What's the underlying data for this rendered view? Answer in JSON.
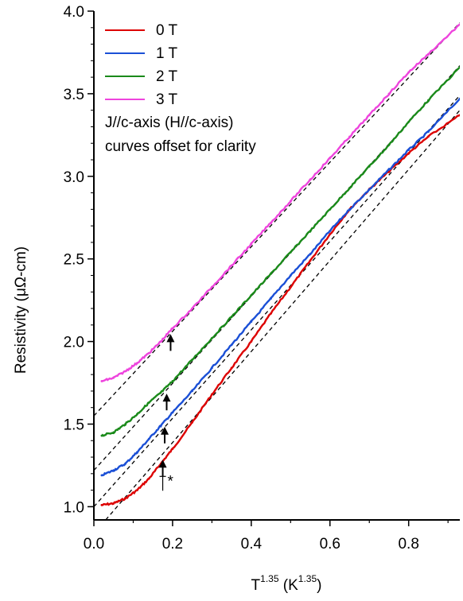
{
  "chart_data": {
    "type": "line",
    "xlabel": {
      "base": "T",
      "exp": "1.35",
      "unit_open": " (K",
      "unit_exp": "1.35",
      "unit_close": ")"
    },
    "ylabel": "Resistivity (μΩ-cm)",
    "xlim": [
      0.0,
      0.93
    ],
    "ylim": [
      0.92,
      4.0
    ],
    "x_ticks": [
      {
        "value": 0.0,
        "label": "0.0"
      },
      {
        "value": 0.2,
        "label": "0.2"
      },
      {
        "value": 0.4,
        "label": "0.4"
      },
      {
        "value": 0.6,
        "label": "0.6"
      },
      {
        "value": 0.8,
        "label": "0.8"
      }
    ],
    "y_ticks": [
      {
        "value": 1.0,
        "label": "1.0"
      },
      {
        "value": 1.5,
        "label": "1.5"
      },
      {
        "value": 2.0,
        "label": "2.0"
      },
      {
        "value": 2.5,
        "label": "2.5"
      },
      {
        "value": 3.0,
        "label": "3.0"
      },
      {
        "value": 3.5,
        "label": "3.5"
      },
      {
        "value": 4.0,
        "label": "4.0"
      }
    ],
    "grid": false,
    "legend_position": "top-left",
    "series": [
      {
        "name": "0 T",
        "color": "#dd0000",
        "x": [
          0.02,
          0.05,
          0.08,
          0.11,
          0.14,
          0.17,
          0.2,
          0.25,
          0.3,
          0.35,
          0.4,
          0.45,
          0.5,
          0.55,
          0.6,
          0.65,
          0.7,
          0.75,
          0.8,
          0.85,
          0.93
        ],
        "y": [
          1.01,
          1.02,
          1.05,
          1.1,
          1.17,
          1.26,
          1.35,
          1.51,
          1.68,
          1.84,
          2.0,
          2.17,
          2.33,
          2.49,
          2.65,
          2.8,
          2.92,
          3.03,
          3.14,
          3.24,
          3.37
        ]
      },
      {
        "name": "1 T",
        "color": "#1a4fd6",
        "x": [
          0.02,
          0.05,
          0.08,
          0.11,
          0.14,
          0.17,
          0.2,
          0.25,
          0.3,
          0.35,
          0.4,
          0.45,
          0.5,
          0.55,
          0.6,
          0.65,
          0.7,
          0.75,
          0.8,
          0.85,
          0.93
        ],
        "y": [
          1.19,
          1.22,
          1.26,
          1.33,
          1.41,
          1.49,
          1.57,
          1.7,
          1.84,
          1.98,
          2.12,
          2.26,
          2.4,
          2.53,
          2.67,
          2.8,
          2.92,
          3.04,
          3.16,
          3.27,
          3.47
        ]
      },
      {
        "name": "2 T",
        "color": "#1a8a1a",
        "x": [
          0.02,
          0.05,
          0.08,
          0.11,
          0.14,
          0.17,
          0.2,
          0.25,
          0.3,
          0.35,
          0.4,
          0.45,
          0.5,
          0.55,
          0.6,
          0.65,
          0.7,
          0.75,
          0.8,
          0.85,
          0.93
        ],
        "y": [
          1.43,
          1.45,
          1.5,
          1.56,
          1.63,
          1.69,
          1.76,
          1.89,
          2.02,
          2.15,
          2.28,
          2.41,
          2.54,
          2.67,
          2.8,
          2.93,
          3.06,
          3.19,
          3.33,
          3.46,
          3.66
        ]
      },
      {
        "name": "3 T",
        "color": "#ee44dd",
        "x": [
          0.02,
          0.05,
          0.08,
          0.11,
          0.14,
          0.17,
          0.2,
          0.25,
          0.3,
          0.35,
          0.4,
          0.45,
          0.5,
          0.55,
          0.6,
          0.65,
          0.7,
          0.75,
          0.8,
          0.85,
          0.93
        ],
        "y": [
          1.76,
          1.78,
          1.82,
          1.87,
          1.93,
          2.0,
          2.08,
          2.2,
          2.33,
          2.46,
          2.59,
          2.72,
          2.85,
          2.98,
          3.11,
          3.24,
          3.37,
          3.5,
          3.63,
          3.74,
          3.92
        ]
      }
    ],
    "fit_lines": [
      {
        "x": [
          0.03,
          0.93
        ],
        "y": [
          0.92,
          3.4
        ]
      },
      {
        "x": [
          0.0,
          0.93
        ],
        "y": [
          1.0,
          3.49
        ]
      },
      {
        "x": [
          0.0,
          0.93
        ],
        "y": [
          1.22,
          3.67
        ]
      },
      {
        "x": [
          0.0,
          0.93
        ],
        "y": [
          1.55,
          3.93
        ]
      }
    ],
    "arrows": [
      {
        "x": 0.195,
        "y": 2.03,
        "label": ""
      },
      {
        "x": 0.185,
        "y": 1.67,
        "label": ""
      },
      {
        "x": 0.18,
        "y": 1.47,
        "label": ""
      },
      {
        "x": 0.175,
        "y": 1.27,
        "label": "*"
      }
    ],
    "annotations": [
      "J//c-axis (H//c-axis)",
      "curves offset for clarity"
    ]
  }
}
